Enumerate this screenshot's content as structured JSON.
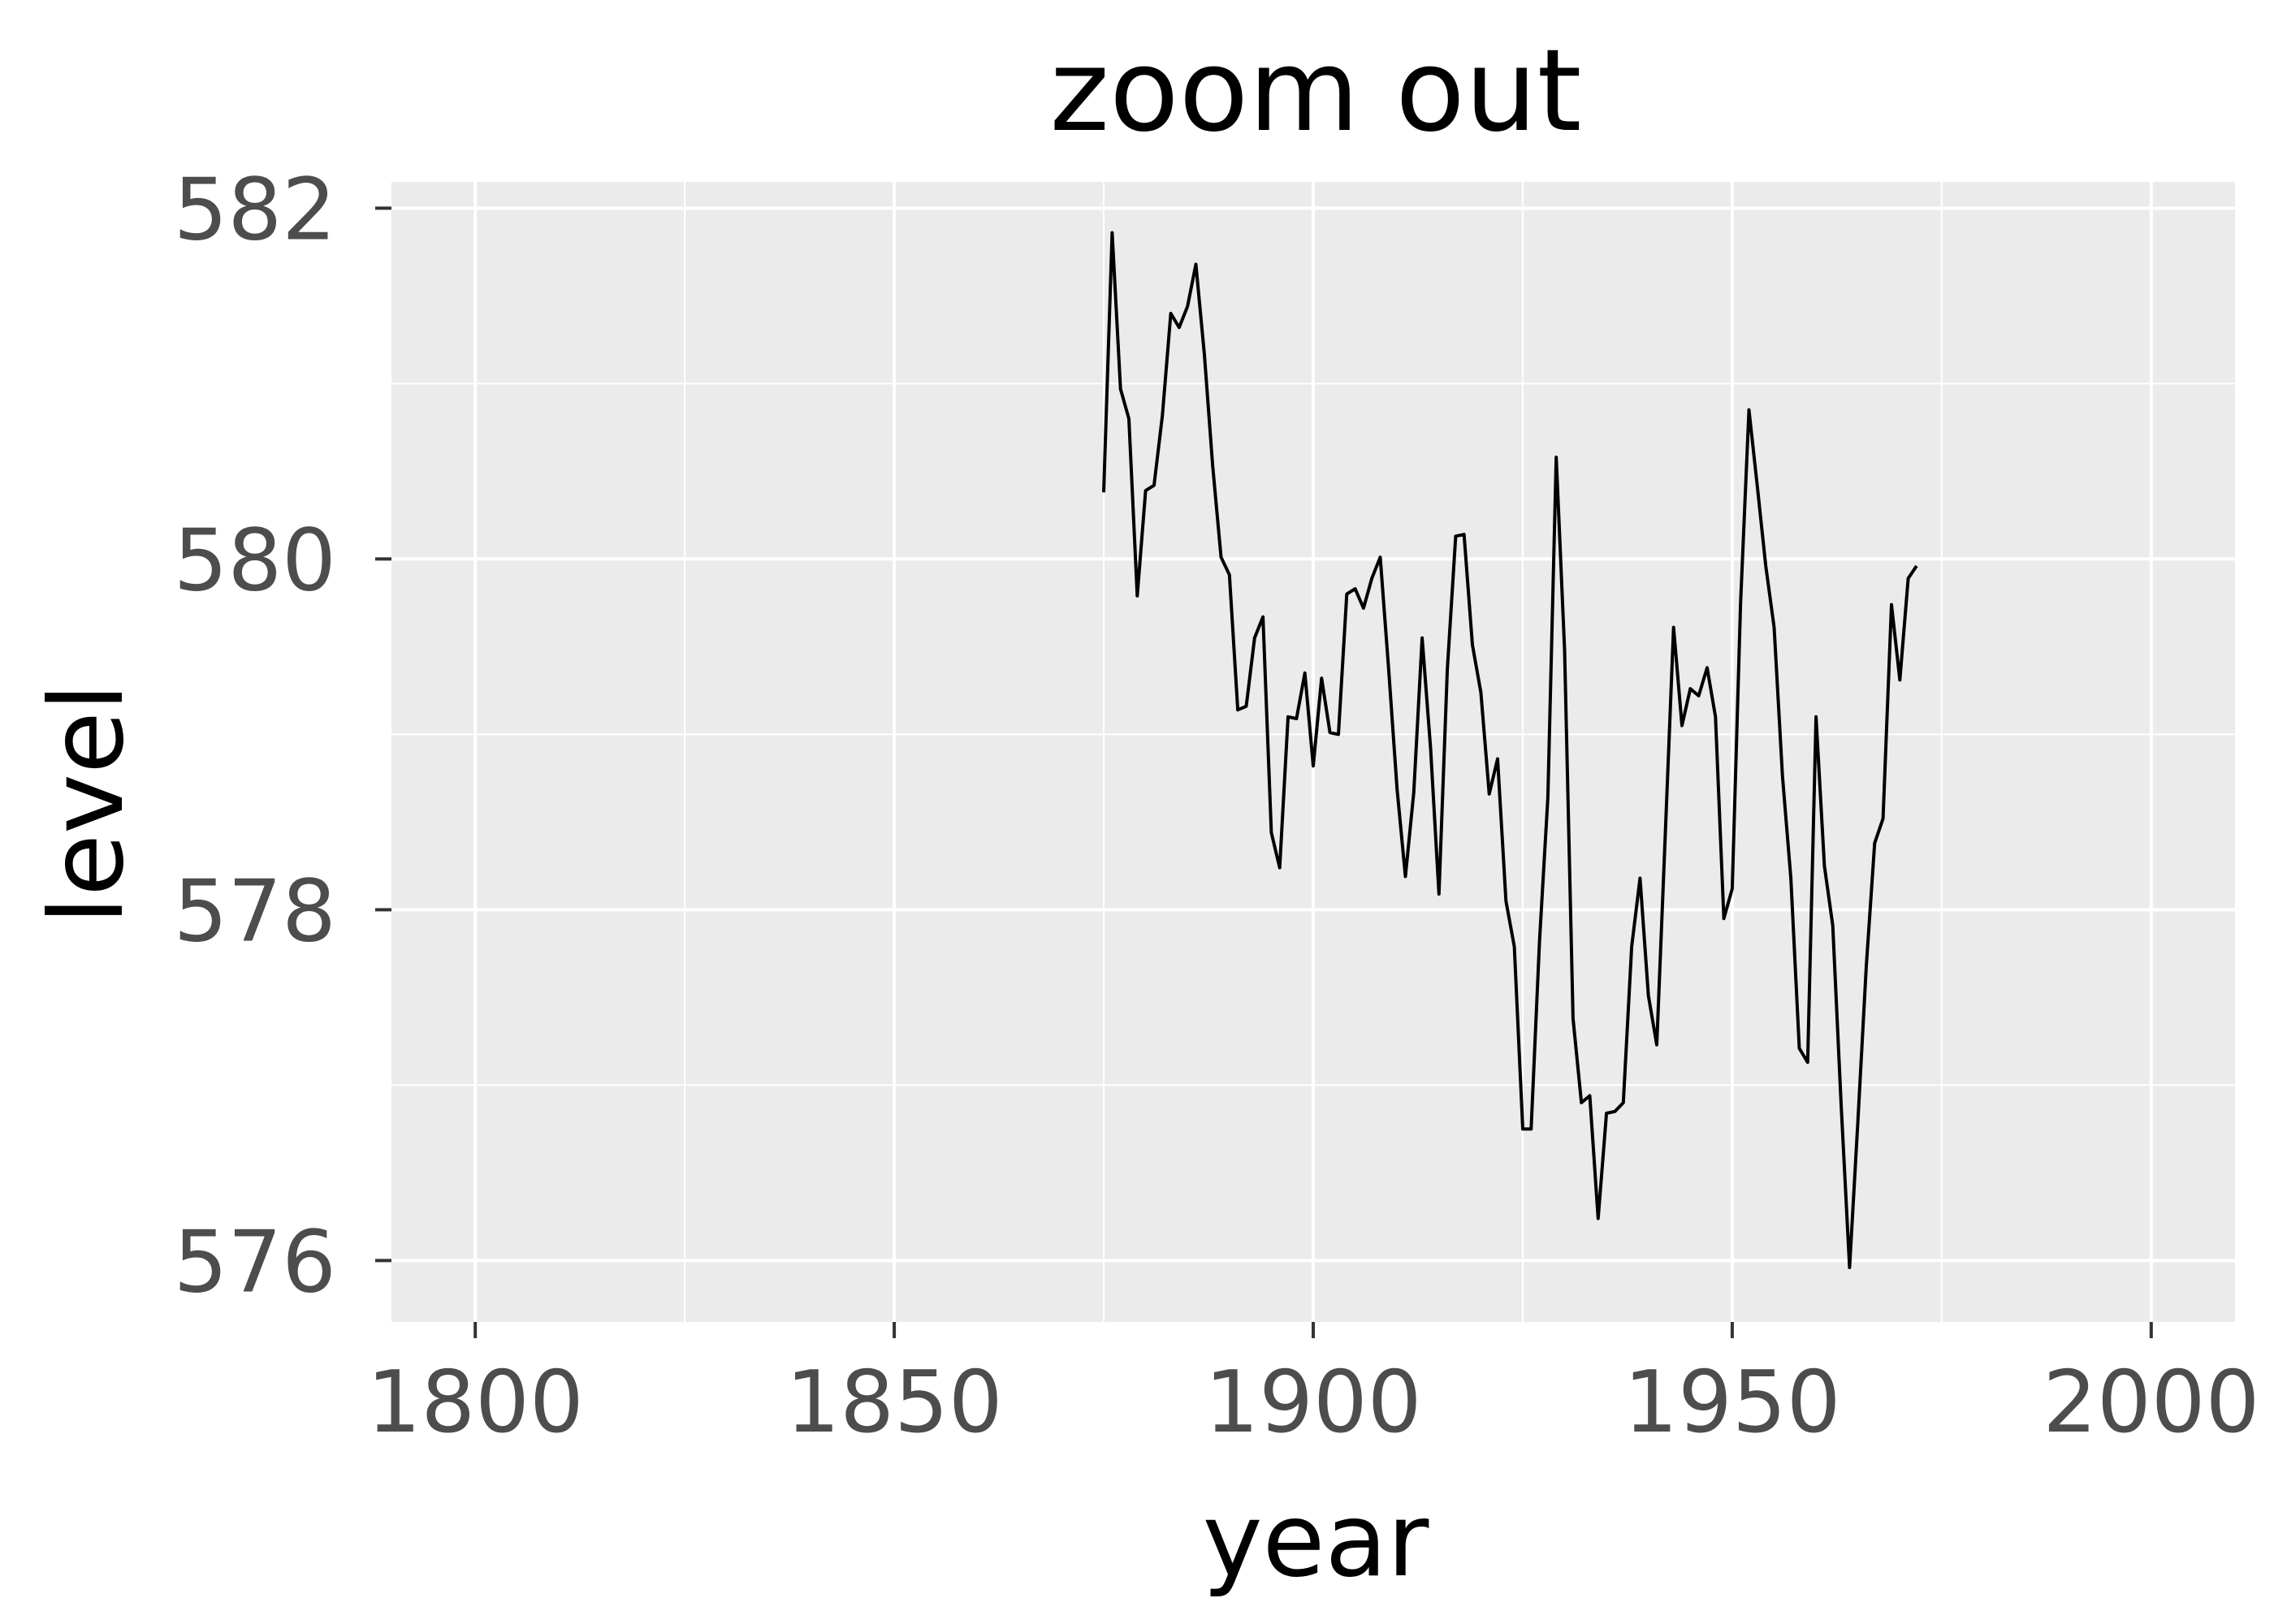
{
  "chart_data": {
    "type": "line",
    "title": "zoom out",
    "xlabel": "year",
    "ylabel": "level",
    "xlim": [
      1790,
      2010
    ],
    "ylim": [
      575.65,
      582.15
    ],
    "x_ticks": [
      1800,
      1850,
      1900,
      1950,
      2000
    ],
    "x_tick_labels": [
      "1800",
      "1850",
      "1900",
      "1950",
      "2000"
    ],
    "y_ticks": [
      576,
      578,
      580,
      582
    ],
    "y_tick_labels": [
      "576",
      "578",
      "580",
      "582"
    ],
    "grid": true,
    "legend": "none",
    "colors": {
      "panel": "#ebebeb",
      "grid": "#ffffff",
      "line": "#000000",
      "tick_text": "#4d4d4d"
    },
    "series": [
      {
        "x": [
          1875,
          1876,
          1877,
          1878,
          1879,
          1880,
          1881,
          1882,
          1883,
          1884,
          1885,
          1886,
          1887,
          1888,
          1889,
          1890,
          1891,
          1892,
          1893,
          1894,
          1895,
          1896,
          1897,
          1898,
          1899,
          1900,
          1901,
          1902,
          1903,
          1904,
          1905,
          1906,
          1907,
          1908,
          1909,
          1910,
          1911,
          1912,
          1913,
          1914,
          1915,
          1916,
          1917,
          1918,
          1919,
          1920,
          1921,
          1922,
          1923,
          1924,
          1925,
          1926,
          1927,
          1928,
          1929,
          1930,
          1931,
          1932,
          1933,
          1934,
          1935,
          1936,
          1937,
          1938,
          1939,
          1940,
          1941,
          1942,
          1943,
          1944,
          1945,
          1946,
          1947,
          1948,
          1949,
          1950,
          1951,
          1952,
          1953,
          1954,
          1955,
          1956,
          1957,
          1958,
          1959,
          1960,
          1961,
          1962,
          1963,
          1964,
          1965,
          1966,
          1967,
          1968,
          1969,
          1970,
          1971,
          1972
        ],
        "y": [
          580.38,
          581.86,
          580.97,
          580.8,
          579.79,
          580.39,
          580.42,
          580.82,
          581.4,
          581.32,
          581.44,
          581.68,
          581.17,
          580.53,
          580.01,
          579.91,
          579.14,
          579.16,
          579.55,
          579.67,
          578.44,
          578.24,
          579.1,
          579.09,
          579.35,
          578.82,
          579.32,
          579.01,
          579.0,
          579.8,
          579.83,
          579.72,
          579.89,
          580.01,
          579.37,
          578.69,
          578.19,
          578.67,
          579.55,
          578.92,
          578.09,
          579.37,
          580.13,
          580.14,
          579.51,
          579.24,
          578.66,
          578.86,
          578.05,
          577.79,
          576.75,
          576.75,
          577.82,
          578.64,
          580.58,
          579.48,
          577.38,
          576.9,
          576.94,
          576.24,
          576.84,
          576.85,
          576.9,
          577.79,
          578.18,
          577.51,
          577.23,
          578.42,
          579.61,
          579.05,
          579.26,
          579.22,
          579.38,
          579.1,
          577.95,
          578.12,
          579.75,
          580.85,
          580.41,
          579.96,
          579.61,
          578.76,
          578.18,
          577.21,
          577.13,
          579.1,
          578.25,
          577.91,
          576.89,
          575.96,
          576.8,
          577.68,
          578.38,
          578.52,
          579.74,
          579.31,
          579.89,
          579.96
        ]
      }
    ]
  }
}
